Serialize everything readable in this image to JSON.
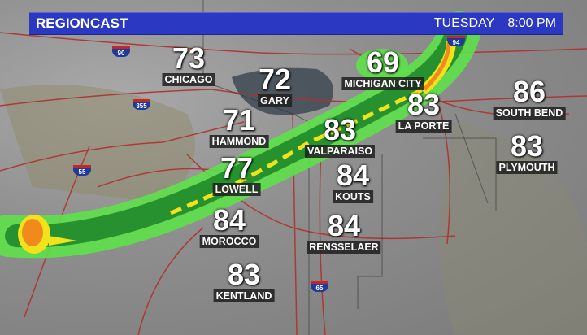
{
  "header": {
    "title": "REGIONCAST",
    "day": "TUESDAY",
    "time": "8:00 PM"
  },
  "cities": [
    {
      "name": "CHICAGO",
      "temp": "73"
    },
    {
      "name": "GARY",
      "temp": "72"
    },
    {
      "name": "MICHIGAN CITY",
      "temp": "69"
    },
    {
      "name": "SOUTH BEND",
      "temp": "86"
    },
    {
      "name": "LA PORTE",
      "temp": "83"
    },
    {
      "name": "HAMMOND",
      "temp": "71"
    },
    {
      "name": "VALPARAISO",
      "temp": "83"
    },
    {
      "name": "PLYMOUTH",
      "temp": "83"
    },
    {
      "name": "LOWELL",
      "temp": "77"
    },
    {
      "name": "KOUTS",
      "temp": "84"
    },
    {
      "name": "MOROCCO",
      "temp": "84"
    },
    {
      "name": "RENSSELAER",
      "temp": "84"
    },
    {
      "name": "KENTLAND",
      "temp": "83"
    }
  ],
  "highways": [
    "90",
    "355",
    "55",
    "94",
    "65"
  ],
  "colors": {
    "header": "#2b39c2",
    "radar_light": "#5ee04a",
    "radar_dark": "#1f8a2a",
    "radar_yellow": "#f2e21c",
    "radar_orange": "#f08a1c",
    "lake": "#3f4a55",
    "roads": "#b0302e"
  }
}
